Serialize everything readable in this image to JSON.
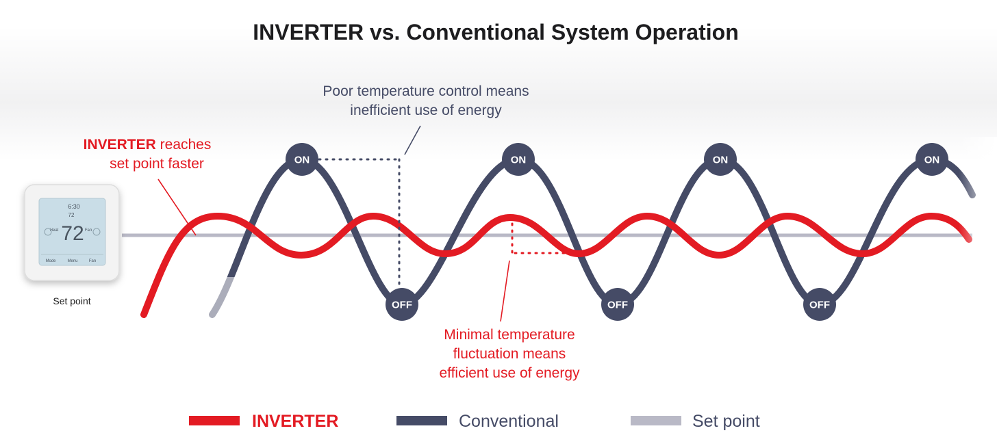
{
  "title": "INVERTER vs. Conventional System Operation",
  "annotations": {
    "poor_control": [
      "Poor temperature control means",
      "inefficient use of energy"
    ],
    "inverter_faster": {
      "bold": "INVERTER",
      "rest": " reaches",
      "line2": "set point faster"
    },
    "minimal_fluctuation": [
      "Minimal temperature",
      "fluctuation means",
      "efficient use of energy"
    ]
  },
  "nodes": {
    "on": "ON",
    "off": "OFF"
  },
  "thermostat": {
    "label": "Set point",
    "time": "6:30",
    "setpoint_small": "72",
    "temp": "72",
    "left_tag": "Heat",
    "right_tag": "Fan",
    "btn_mode": "Mode",
    "btn_menu": "Menu",
    "btn_fan": "Fan"
  },
  "legend": [
    {
      "label": "INVERTER",
      "color": "#e31b23",
      "bold": true
    },
    {
      "label": "Conventional",
      "color": "#454b66",
      "bold": false
    },
    {
      "label": "Set point",
      "color": "#b9b9c6",
      "bold": false
    }
  ],
  "colors": {
    "inverter": "#e31b23",
    "conventional": "#454b66",
    "setpoint": "#b9b9c6",
    "annotation_dark": "#454b66",
    "annotation_red": "#e31b23"
  }
}
